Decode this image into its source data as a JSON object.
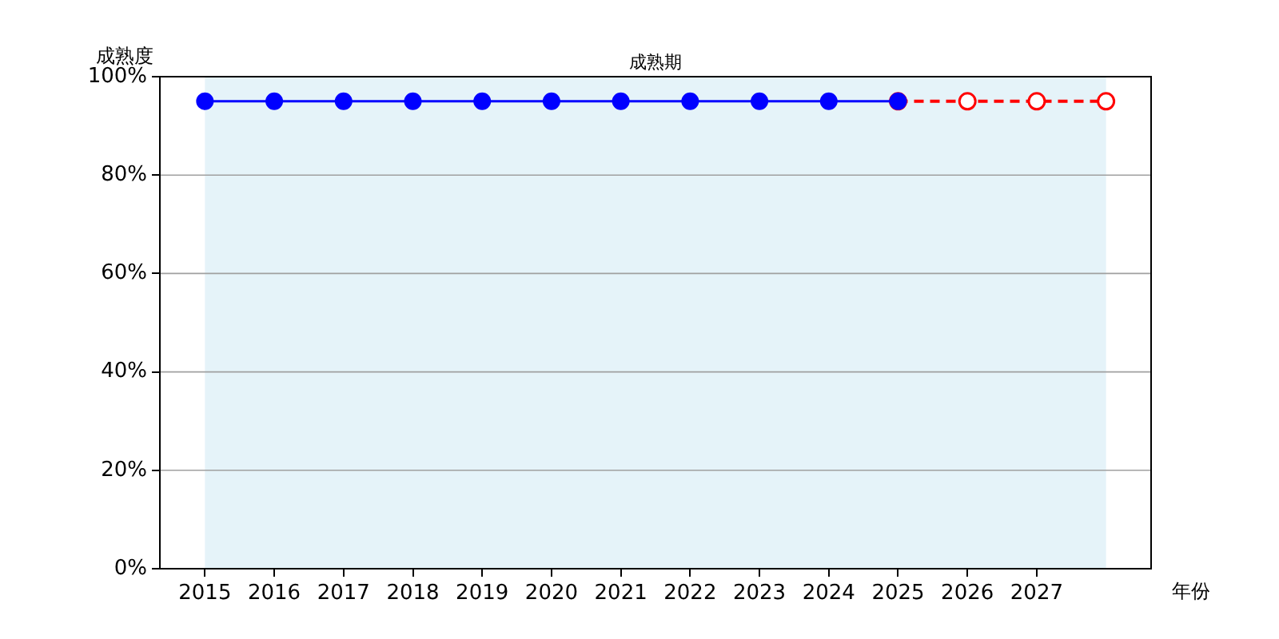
{
  "chart_data": {
    "type": "line",
    "xlabel": "年份",
    "ylabel": "成熟度",
    "x": [
      2015,
      2016,
      2017,
      2018,
      2019,
      2020,
      2021,
      2022,
      2023,
      2024,
      2025
    ],
    "series": [
      {
        "color": "#0000ff",
        "values": [
          95,
          95,
          95,
          95,
          95,
          95,
          95,
          95,
          95,
          95,
          95
        ],
        "line_style": "solid"
      },
      {
        "color": "#ff0000",
        "x": [
          2025,
          2026,
          2027,
          2028
        ],
        "values": [
          95,
          95,
          95,
          95
        ],
        "line_style": "dashed"
      }
    ],
    "xlim": [
      2014.35,
      2028.65
    ],
    "xticks": [
      2015,
      2016,
      2017,
      2018,
      2019,
      2020,
      2021,
      2022,
      2023,
      2024,
      2025,
      2026,
      2027
    ],
    "ylim": [
      0,
      100
    ],
    "yticks": [
      {
        "value": 0,
        "label": "0%"
      },
      {
        "value": 20,
        "label": "20%"
      },
      {
        "value": 40,
        "label": "40%"
      },
      {
        "value": 60,
        "label": "60%"
      },
      {
        "value": 80,
        "label": "80%"
      },
      {
        "value": 100,
        "label": "100%"
      }
    ],
    "bands": [
      {
        "axis": "x",
        "from": 2015,
        "to": 2028,
        "label": "成熟期",
        "color": "#e5f3f9"
      }
    ],
    "grid": "y",
    "legend": false,
    "marker": "circle"
  }
}
